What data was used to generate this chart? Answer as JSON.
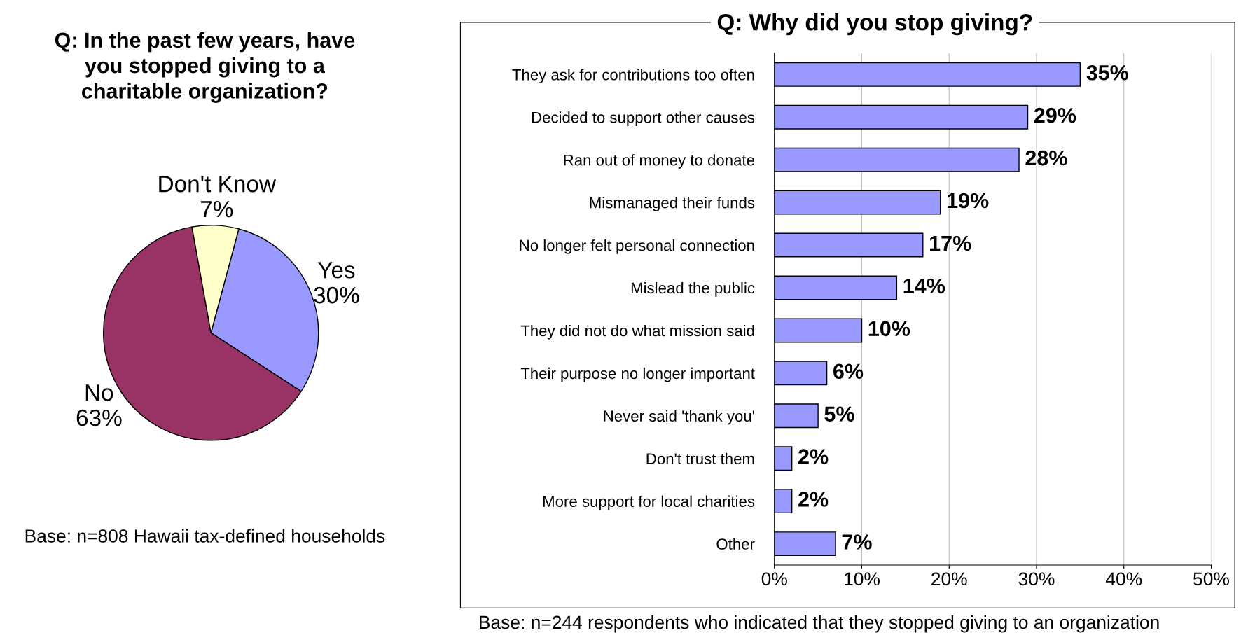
{
  "chart_data": [
    {
      "type": "pie",
      "title": "Q: In the past few years, have you stopped giving to a charitable organization?",
      "categories": [
        "Yes",
        "No",
        "Don't Know"
      ],
      "values": [
        30,
        63,
        7
      ],
      "colors": [
        "#9999ff",
        "#993366",
        "#ffffcc"
      ],
      "value_labels": [
        "30%",
        "63%",
        "7%"
      ],
      "annotations": [
        "Base: n=808 Hawaii tax-defined households"
      ]
    },
    {
      "type": "bar",
      "orientation": "horizontal",
      "title": "Q: Why did you stop giving?",
      "categories": [
        "They ask for contributions too often",
        "Decided to support other causes",
        "Ran out of money to donate",
        "Mismanaged their funds",
        "No longer felt personal connection",
        "Mislead the public",
        "They did not do what mission said",
        "Their purpose no longer important",
        "Never said 'thank you'",
        "Don't trust them",
        "More support for local charities",
        "Other"
      ],
      "values": [
        35,
        29,
        28,
        19,
        17,
        14,
        10,
        6,
        5,
        2,
        2,
        7
      ],
      "color": "#9999ff",
      "value_labels": [
        "35%",
        "29%",
        "28%",
        "19%",
        "17%",
        "14%",
        "10%",
        "6%",
        "5%",
        "2%",
        "2%",
        "7%"
      ],
      "xlim": [
        0,
        50
      ],
      "xticks": [
        {
          "value": 0,
          "label": "0%"
        },
        {
          "value": 10,
          "label": "10%"
        },
        {
          "value": 20,
          "label": "20%"
        },
        {
          "value": 30,
          "label": "30%"
        },
        {
          "value": 40,
          "label": "40%"
        },
        {
          "value": 50,
          "label": "50%"
        }
      ],
      "grid": "x",
      "annotations": [
        "Base: n=244 respondents who indicated that they stopped giving to an organization"
      ]
    }
  ]
}
